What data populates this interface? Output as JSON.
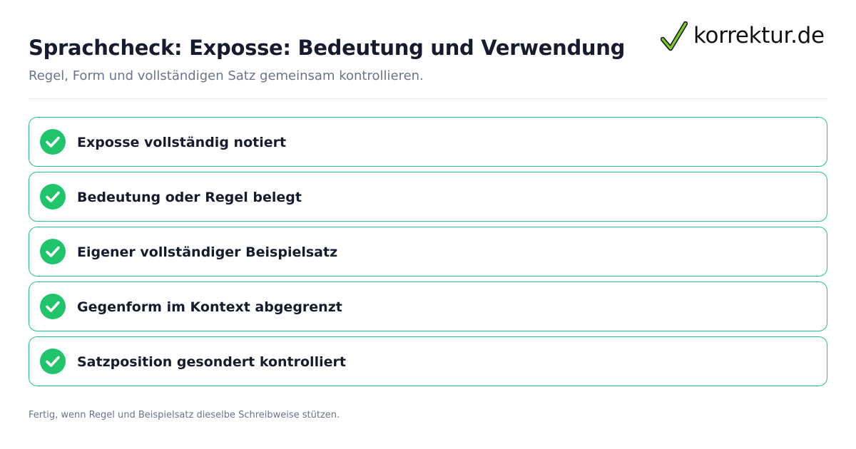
{
  "header": {
    "title": "Sprachcheck: Exposse: Bedeutung und Verwendung",
    "subtitle": "Regel, Form und vollständigen Satz gemeinsam kontrollieren."
  },
  "logo": {
    "text": "korrektur.de",
    "icon": "checkmark-icon",
    "check_color": "#3a7d0a",
    "check_highlight": "#9fe02f"
  },
  "checklist": {
    "items": [
      {
        "label": "Exposse vollständig notiert",
        "checked": true,
        "icon": "check-circle-icon"
      },
      {
        "label": "Bedeutung oder Regel belegt",
        "checked": true,
        "icon": "check-circle-icon"
      },
      {
        "label": "Eigener vollständiger Beispielsatz",
        "checked": true,
        "icon": "check-circle-icon"
      },
      {
        "label": "Gegenform im Kontext abgegrenzt",
        "checked": true,
        "icon": "check-circle-icon"
      },
      {
        "label": "Satzposition gesondert kontrolliert",
        "checked": true,
        "icon": "check-circle-icon"
      }
    ]
  },
  "footer": {
    "note": "Fertig, wenn Regel und Beispielsatz dieselbe Schreibweise stützen."
  },
  "colors": {
    "accent_green": "#1fc46b",
    "border_green": "#22c08a",
    "title_text": "#161c2d",
    "muted_text": "#68758a"
  }
}
